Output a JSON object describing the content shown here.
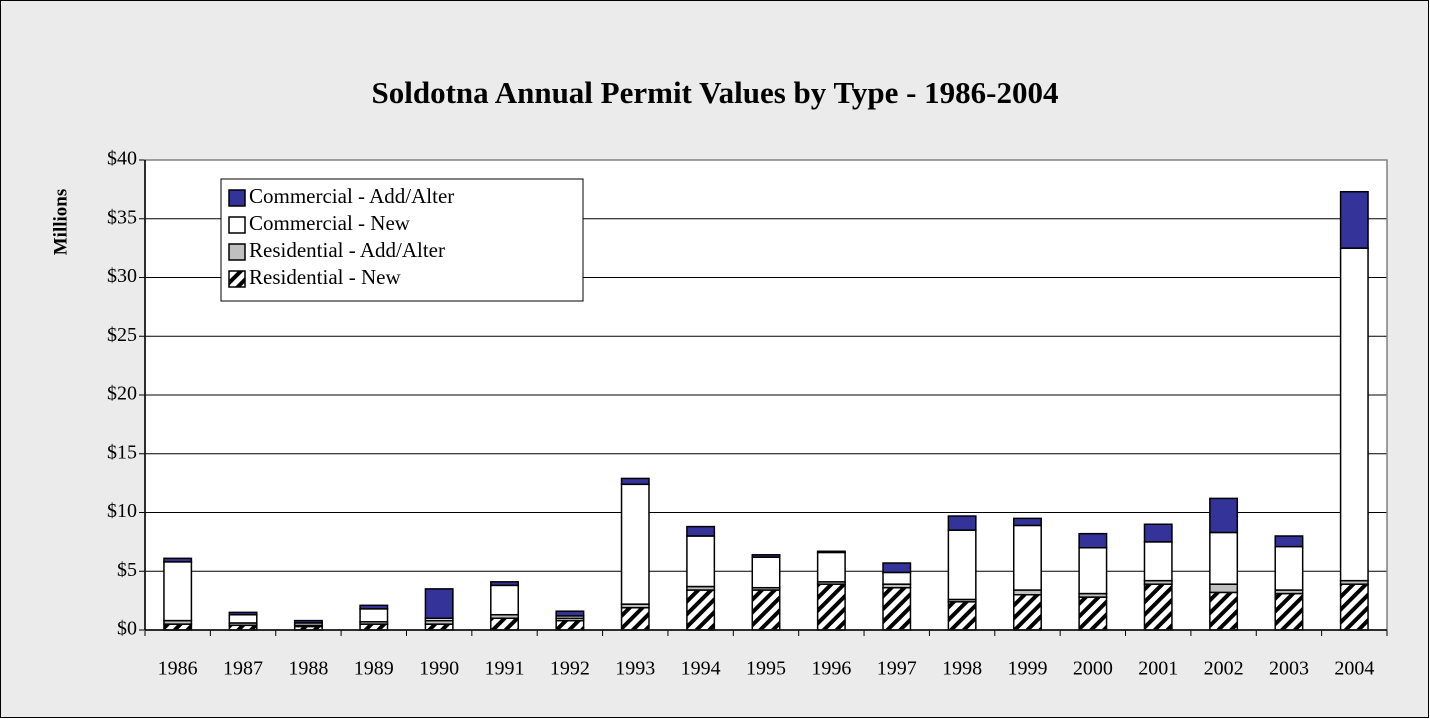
{
  "chart_data": {
    "type": "bar",
    "stacked": true,
    "title": "Soldotna Annual Permit Values by Type - 1986-2004",
    "y_label": "Millions",
    "categories": [
      "1986",
      "1987",
      "1988",
      "1989",
      "1990",
      "1991",
      "1992",
      "1993",
      "1994",
      "1995",
      "1996",
      "1997",
      "1998",
      "1999",
      "2000",
      "2001",
      "2002",
      "2003",
      "2004"
    ],
    "series": [
      {
        "name": "Residential - New",
        "color": "#000000",
        "pattern": "hatch",
        "values": [
          0.5,
          0.4,
          0.3,
          0.5,
          0.5,
          1.0,
          0.8,
          1.9,
          3.4,
          3.4,
          3.9,
          3.6,
          2.4,
          3.0,
          2.8,
          3.9,
          3.2,
          3.1,
          3.9
        ]
      },
      {
        "name": "Residential - Add/Alter",
        "color": "#c0c0c0",
        "values": [
          0.3,
          0.2,
          0.1,
          0.2,
          0.3,
          0.3,
          0.2,
          0.3,
          0.3,
          0.2,
          0.2,
          0.3,
          0.2,
          0.4,
          0.3,
          0.3,
          0.7,
          0.3,
          0.3
        ]
      },
      {
        "name": "Commercial - New",
        "color": "#ffffff",
        "values": [
          5.0,
          0.7,
          0.2,
          1.1,
          0.2,
          2.5,
          0.2,
          10.2,
          4.3,
          2.6,
          2.5,
          1.0,
          5.9,
          5.5,
          3.9,
          3.3,
          4.4,
          3.7,
          28.3
        ]
      },
      {
        "name": "Commercial - Add/Alter",
        "color": "#333399",
        "values": [
          0.3,
          0.2,
          0.2,
          0.3,
          2.5,
          0.3,
          0.4,
          0.5,
          0.8,
          0.2,
          0.1,
          0.8,
          1.2,
          0.6,
          1.2,
          1.5,
          2.9,
          0.9,
          4.8
        ]
      }
    ],
    "ylim": [
      0,
      40
    ],
    "yticks": [
      {
        "value": 0,
        "label": "$0"
      },
      {
        "value": 5,
        "label": "$5"
      },
      {
        "value": 10,
        "label": "$10"
      },
      {
        "value": 15,
        "label": "$15"
      },
      {
        "value": 20,
        "label": "$20"
      },
      {
        "value": 25,
        "label": "$25"
      },
      {
        "value": 30,
        "label": "$30"
      },
      {
        "value": 35,
        "label": "$35"
      },
      {
        "value": 40,
        "label": "$40"
      }
    ],
    "grid": true,
    "legend": "top-left"
  }
}
